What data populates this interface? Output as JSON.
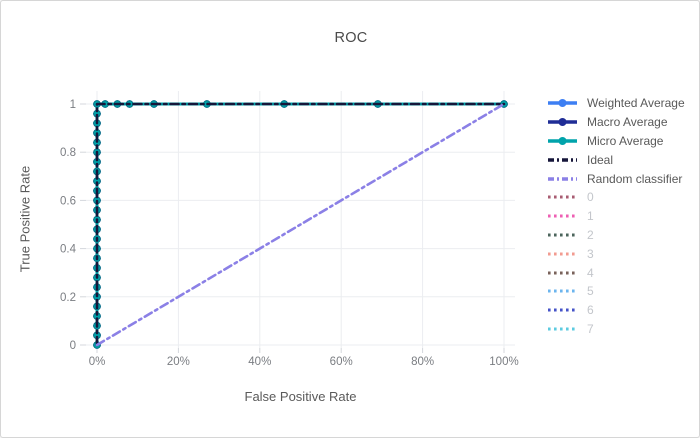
{
  "window": {
    "background": "#ffffff",
    "border_color": "#d6d6d6"
  },
  "chart_data": {
    "type": "line",
    "title": "ROC",
    "xlabel": "False Positive Rate",
    "ylabel": "True Positive Rate",
    "xlim": [
      0,
      1
    ],
    "ylim": [
      0,
      1
    ],
    "grid": true,
    "legend_position": "right",
    "x_ticks": [
      {
        "value": 0.0,
        "label": "0%"
      },
      {
        "value": 0.2,
        "label": "20%"
      },
      {
        "value": 0.4,
        "label": "40%"
      },
      {
        "value": 0.6,
        "label": "60%"
      },
      {
        "value": 0.8,
        "label": "80%"
      },
      {
        "value": 1.0,
        "label": "100%"
      }
    ],
    "y_ticks": [
      {
        "value": 0.0,
        "label": "0"
      },
      {
        "value": 0.2,
        "label": "0.2"
      },
      {
        "value": 0.4,
        "label": "0.4"
      },
      {
        "value": 0.6,
        "label": "0.6"
      },
      {
        "value": 0.8,
        "label": "0.8"
      },
      {
        "value": 1.0,
        "label": "1"
      }
    ],
    "marker_points": [
      [
        0,
        0
      ],
      [
        0,
        0.04
      ],
      [
        0,
        0.08
      ],
      [
        0,
        0.12
      ],
      [
        0,
        0.16
      ],
      [
        0,
        0.2
      ],
      [
        0,
        0.24
      ],
      [
        0,
        0.28
      ],
      [
        0,
        0.32
      ],
      [
        0,
        0.36
      ],
      [
        0,
        0.4
      ],
      [
        0,
        0.44
      ],
      [
        0,
        0.48
      ],
      [
        0,
        0.52
      ],
      [
        0,
        0.56
      ],
      [
        0,
        0.6
      ],
      [
        0,
        0.64
      ],
      [
        0,
        0.68
      ],
      [
        0,
        0.72
      ],
      [
        0,
        0.76
      ],
      [
        0,
        0.8
      ],
      [
        0,
        0.84
      ],
      [
        0,
        0.88
      ],
      [
        0,
        0.92
      ],
      [
        0,
        0.96
      ],
      [
        0,
        1
      ],
      [
        0.02,
        1
      ],
      [
        0.05,
        1
      ],
      [
        0.08,
        1
      ],
      [
        0.14,
        1
      ],
      [
        0.27,
        1
      ],
      [
        0.46,
        1
      ],
      [
        0.69,
        1
      ],
      [
        1,
        1
      ]
    ],
    "series": [
      {
        "name": "Weighted Average",
        "color": "#3d7ff3",
        "marker_edge": "#2b63cc",
        "line_style": "solid",
        "line_width": 3,
        "markers": true,
        "visible": true,
        "points": [
          [
            0,
            0
          ],
          [
            0,
            1
          ],
          [
            1,
            1
          ]
        ]
      },
      {
        "name": "Macro Average",
        "color": "#1f2d96",
        "marker_edge": "#16206e",
        "line_style": "solid",
        "line_width": 3,
        "markers": true,
        "visible": true,
        "points": [
          [
            0,
            0
          ],
          [
            0,
            1
          ],
          [
            1,
            1
          ]
        ]
      },
      {
        "name": "Micro Average",
        "color": "#00a3ab",
        "marker_edge": "#077e8a",
        "line_style": "solid",
        "line_width": 3,
        "markers": true,
        "visible": true,
        "points": [
          [
            0,
            0
          ],
          [
            0,
            1
          ],
          [
            1,
            1
          ]
        ]
      },
      {
        "name": "Ideal",
        "color": "#16163a",
        "line_style": "dashdot",
        "line_width": 2.6,
        "markers": false,
        "visible": true,
        "points": [
          [
            0,
            0
          ],
          [
            0,
            1
          ],
          [
            1,
            1
          ]
        ]
      },
      {
        "name": "Random classifier",
        "color": "#8b80e6",
        "line_style": "dashdot",
        "line_width": 2.6,
        "markers": false,
        "visible": true,
        "points": [
          [
            0,
            0
          ],
          [
            1,
            1
          ]
        ]
      },
      {
        "name": "0",
        "color": "#a85c72",
        "line_style": "dot",
        "line_width": 3,
        "markers": false,
        "visible": false,
        "points": []
      },
      {
        "name": "1",
        "color": "#ee5fb3",
        "line_style": "dot",
        "line_width": 3,
        "markers": false,
        "visible": false,
        "points": []
      },
      {
        "name": "2",
        "color": "#4c655c",
        "line_style": "dot",
        "line_width": 3,
        "markers": false,
        "visible": false,
        "points": []
      },
      {
        "name": "3",
        "color": "#f29b90",
        "line_style": "dot",
        "line_width": 3,
        "markers": false,
        "visible": false,
        "points": []
      },
      {
        "name": "4",
        "color": "#79625a",
        "line_style": "dot",
        "line_width": 3,
        "markers": false,
        "visible": false,
        "points": []
      },
      {
        "name": "5",
        "color": "#6cb5ee",
        "line_style": "dot",
        "line_width": 3,
        "markers": false,
        "visible": false,
        "points": []
      },
      {
        "name": "6",
        "color": "#4553c8",
        "line_style": "dot",
        "line_width": 3,
        "markers": false,
        "visible": false,
        "points": []
      },
      {
        "name": "7",
        "color": "#5ccbe0",
        "line_style": "dot",
        "line_width": 3,
        "markers": false,
        "visible": false,
        "points": []
      }
    ],
    "style": {
      "grid_color": "#ebedf0",
      "tick_color": "#d4d7dc",
      "tick_label_color": "#7a7d82",
      "title_color": "#4a4a4a",
      "axis_title_color": "#5a5a5a",
      "legend_active_text": "#595959",
      "legend_inactive_text": "#c3c6cb"
    }
  }
}
